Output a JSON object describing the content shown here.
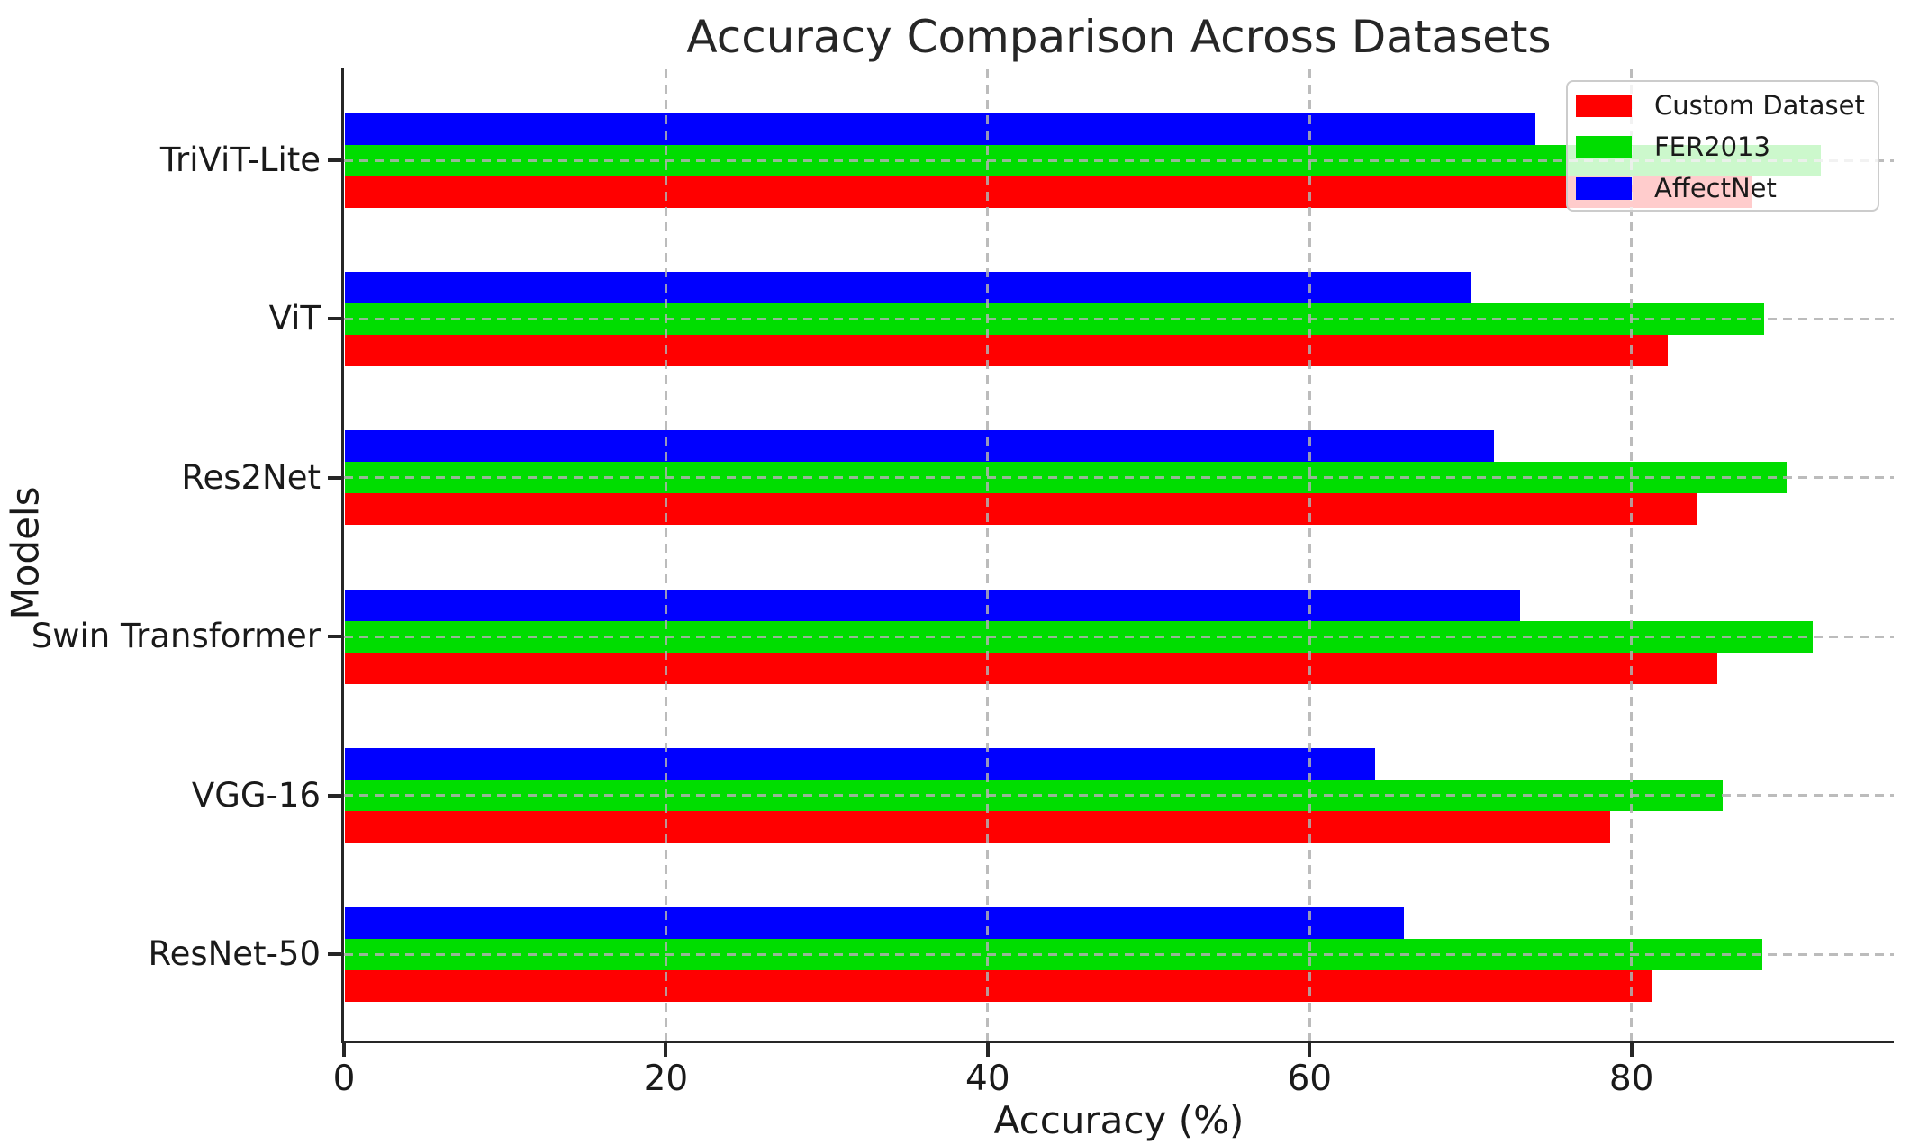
{
  "title": "Accuracy Comparison Across Datasets",
  "chart_data": {
    "type": "bar",
    "orientation": "horizontal",
    "title": "Accuracy Comparison Across Datasets",
    "xlabel": "Accuracy (%)",
    "ylabel": "Models",
    "categories": [
      "TriViT-Lite",
      "ViT",
      "Res2Net",
      "Swin Transformer",
      "VGG-16",
      "ResNet-50"
    ],
    "categories_order_note": "listed top to bottom as displayed",
    "series": [
      {
        "name": "Custom Dataset",
        "color": "#ff0000",
        "values": [
          87.4,
          82.2,
          84.0,
          85.3,
          78.6,
          81.2
        ]
      },
      {
        "name": "FER2013",
        "color": "#00dd00",
        "values": [
          91.7,
          88.2,
          89.6,
          91.2,
          85.6,
          88.1
        ]
      },
      {
        "name": "AffectNet",
        "color": "#0000ff",
        "values": [
          74.0,
          70.0,
          71.4,
          73.0,
          64.0,
          65.8
        ]
      }
    ],
    "bar_order_within_group_top_to_bottom": [
      "AffectNet",
      "FER2013",
      "Custom Dataset"
    ],
    "xlim": [
      0,
      96.3
    ],
    "x_ticks": [
      0,
      20,
      40,
      60,
      80
    ],
    "grid": "dashed, gray, both axes, drawn over bars",
    "legend_position": "upper right",
    "legend_labels": [
      "Custom Dataset",
      "FER2013",
      "AffectNet"
    ],
    "grid_color": "#b0b0b0",
    "spine_color": "#262626"
  }
}
